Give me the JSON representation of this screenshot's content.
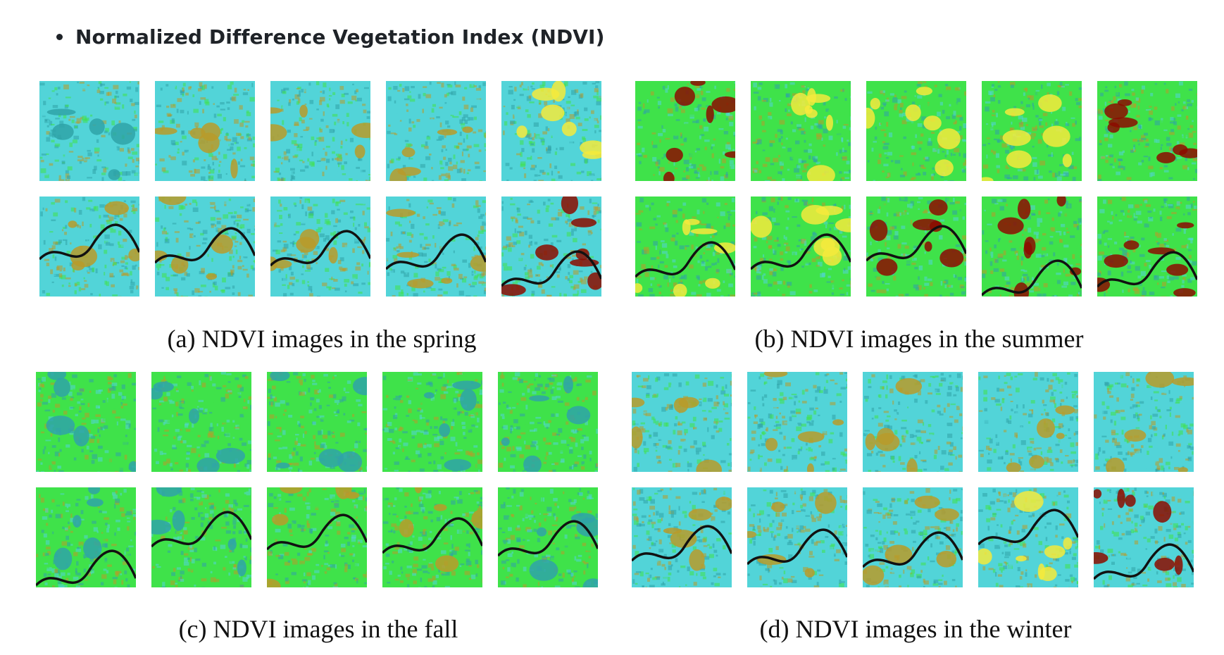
{
  "heading": "Normalized Difference Vegetation Index (NDVI)",
  "palette": {
    "cyan": "#52d4d8",
    "teal": "#2fa3a8",
    "green": "#3fe24a",
    "olive": "#b89b2a",
    "yellow": "#f5ea3c",
    "darkred": "#8c0c00",
    "river": "#111111"
  },
  "panels": [
    {
      "id": "spring",
      "caption": "(a) NDVI images in the spring",
      "base": "#52d4d8",
      "row1": [
        "teal",
        "olive",
        "olive",
        "olive",
        "yellow"
      ],
      "row2": [
        "olive",
        "olive",
        "olive",
        "olive",
        "darkred"
      ]
    },
    {
      "id": "summer",
      "caption": "(b) NDVI images in the summer",
      "base": "#3fe24a",
      "row1": [
        "darkred",
        "yellow",
        "yellow",
        "yellow",
        "darkred"
      ],
      "row2": [
        "yellow",
        "yellow",
        "darkred",
        "darkred",
        "darkred"
      ]
    },
    {
      "id": "fall",
      "caption": "(c) NDVI images in the fall",
      "base": "#3fe24a",
      "row1": [
        "teal",
        "teal",
        "teal",
        "teal",
        "teal"
      ],
      "row2": [
        "teal",
        "teal",
        "olive",
        "olive",
        "teal"
      ]
    },
    {
      "id": "winter",
      "caption": "(d) NDVI images in the winter",
      "base": "#52d4d8",
      "row1": [
        "olive",
        "olive",
        "olive",
        "olive",
        "olive"
      ],
      "row2": [
        "olive",
        "olive",
        "olive",
        "yellow",
        "darkred"
      ]
    }
  ]
}
